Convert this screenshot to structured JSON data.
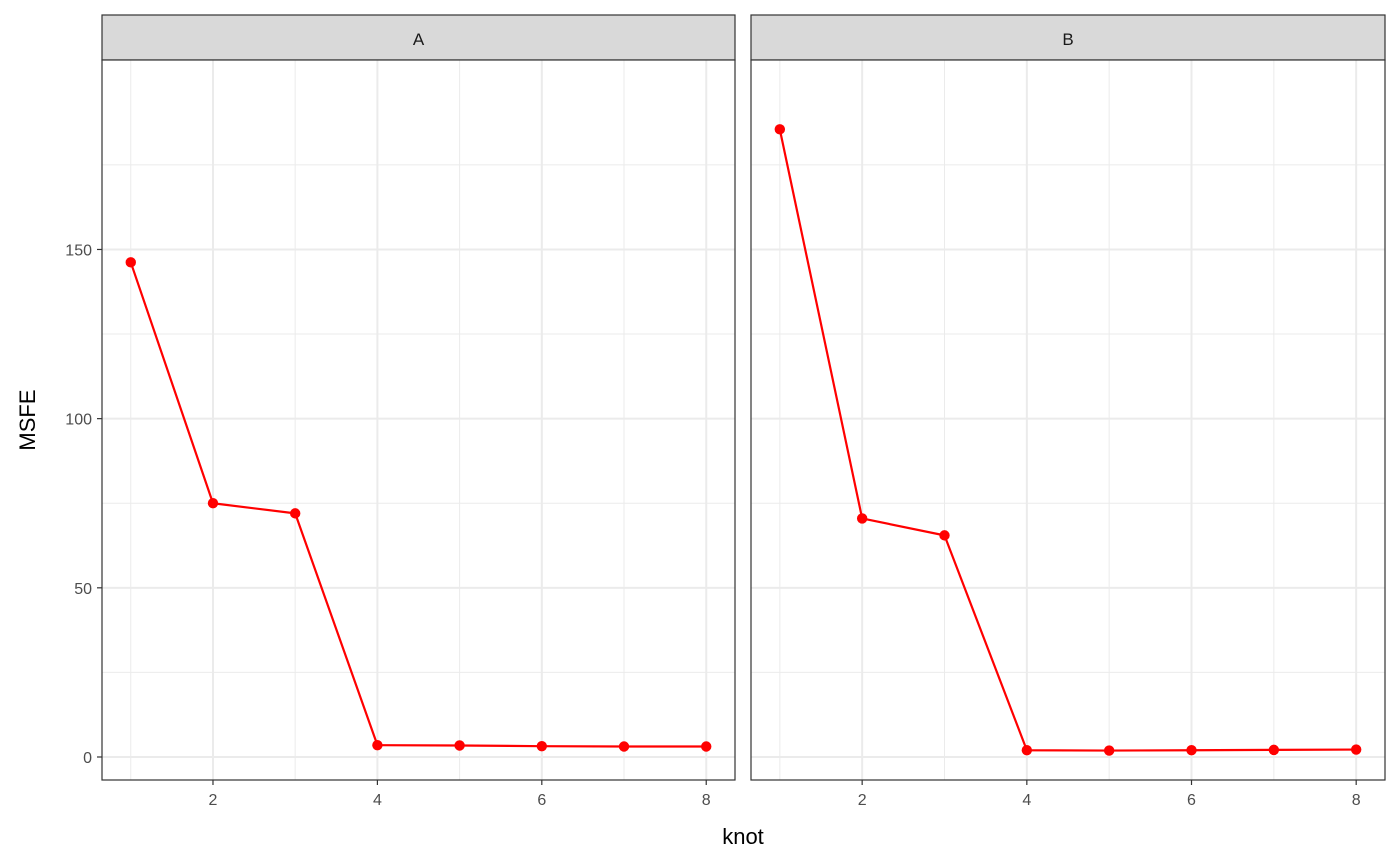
{
  "chart_data": {
    "type": "line",
    "xlabel": "knot",
    "ylabel": "MSFE",
    "x_ticks": [
      2,
      4,
      6,
      8
    ],
    "y_ticks": [
      0,
      50,
      100,
      150
    ],
    "xlim": [
      0.65,
      8.35
    ],
    "ylim": [
      -6.8,
      206
    ],
    "grid": true,
    "line_color": "#ff0000",
    "panels": [
      {
        "strip": "A",
        "x": [
          1,
          2,
          3,
          4,
          5,
          6,
          7,
          8
        ],
        "values": [
          146.2,
          75.0,
          72.0,
          3.5,
          3.4,
          3.2,
          3.1,
          3.1
        ]
      },
      {
        "strip": "B",
        "x": [
          1,
          2,
          3,
          4,
          5,
          6,
          7,
          8
        ],
        "values": [
          185.5,
          70.5,
          65.5,
          2.0,
          1.9,
          2.0,
          2.1,
          2.2
        ]
      }
    ]
  }
}
